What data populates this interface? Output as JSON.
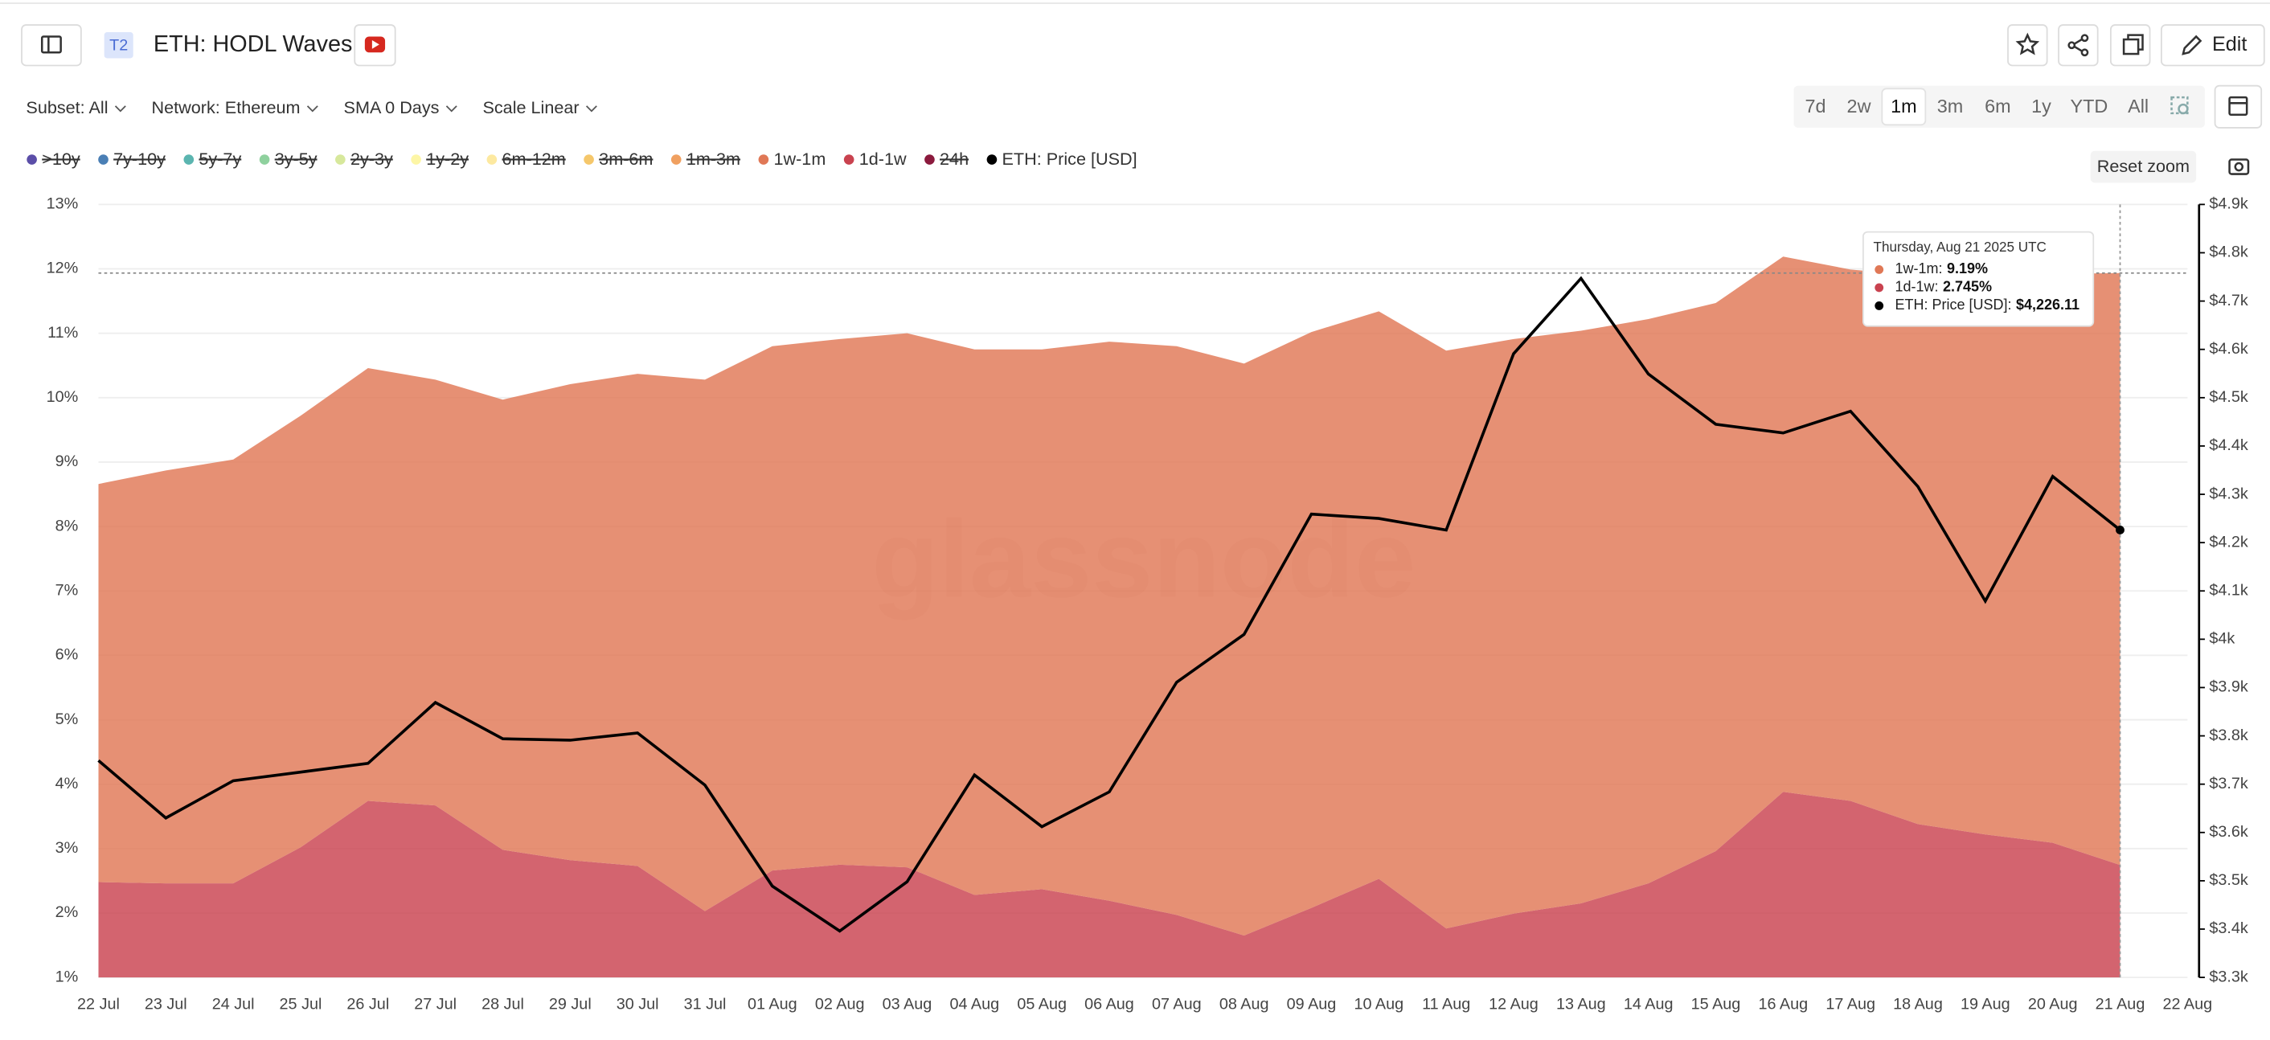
{
  "header": {
    "badge": "T2",
    "title": "ETH: HODL Waves",
    "edit": "Edit"
  },
  "controls": {
    "dropdowns": [
      "Subset: All",
      "Network: Ethereum",
      "SMA 0 Days",
      "Scale Linear"
    ],
    "ranges": [
      "7d",
      "2w",
      "1m",
      "3m",
      "6m",
      "1y",
      "YTD",
      "All"
    ],
    "active_range": "1m",
    "reset_zoom": "Reset zoom"
  },
  "chart_data": {
    "type": "area",
    "watermark": "glassnode",
    "categories": [
      "22 Jul",
      "23 Jul",
      "24 Jul",
      "25 Jul",
      "26 Jul",
      "27 Jul",
      "28 Jul",
      "29 Jul",
      "30 Jul",
      "31 Jul",
      "01 Aug",
      "02 Aug",
      "03 Aug",
      "04 Aug",
      "05 Aug",
      "06 Aug",
      "07 Aug",
      "08 Aug",
      "09 Aug",
      "10 Aug",
      "11 Aug",
      "12 Aug",
      "13 Aug",
      "14 Aug",
      "15 Aug",
      "16 Aug",
      "17 Aug",
      "18 Aug",
      "19 Aug",
      "20 Aug",
      "21 Aug",
      "22 Aug"
    ],
    "series": [
      {
        "name": ">10y",
        "color": "#5b4ea8",
        "hidden": true
      },
      {
        "name": "7y-10y",
        "color": "#4a7fb5",
        "hidden": true
      },
      {
        "name": "5y-7y",
        "color": "#5bb5b0",
        "hidden": true
      },
      {
        "name": "3y-5y",
        "color": "#8fd19e",
        "hidden": true
      },
      {
        "name": "2y-3y",
        "color": "#d7e89c",
        "hidden": true
      },
      {
        "name": "1y-2y",
        "color": "#fdf6a6",
        "hidden": true
      },
      {
        "name": "6m-12m",
        "color": "#fde9a0",
        "hidden": true
      },
      {
        "name": "3m-6m",
        "color": "#f5c76b",
        "hidden": true
      },
      {
        "name": "1m-3m",
        "color": "#f0a060",
        "hidden": true
      },
      {
        "name": "1w-1m",
        "color": "#e07856",
        "values": [
          6.18,
          6.41,
          6.58,
          6.7,
          6.72,
          6.61,
          6.99,
          7.39,
          7.64,
          8.25,
          8.14,
          8.16,
          8.29,
          8.47,
          8.38,
          8.68,
          8.83,
          8.88,
          8.94,
          8.81,
          8.97,
          8.92,
          8.89,
          8.76,
          8.51,
          8.31,
          8.25,
          8.52,
          8.7,
          8.83,
          9.19,
          null
        ]
      },
      {
        "name": "1d-1w",
        "color": "#c9424f",
        "values": [
          2.48,
          2.46,
          2.46,
          3.02,
          3.74,
          3.67,
          2.98,
          2.82,
          2.73,
          2.03,
          2.66,
          2.75,
          2.71,
          2.28,
          2.37,
          2.19,
          1.97,
          1.65,
          2.08,
          2.53,
          1.76,
          1.99,
          2.15,
          2.46,
          2.96,
          3.88,
          3.74,
          3.38,
          3.22,
          3.09,
          2.745,
          null
        ]
      },
      {
        "name": "24h",
        "color": "#8b1a3d",
        "hidden": true
      },
      {
        "name": "ETH: Price [USD]",
        "color": "#000000",
        "axis": "y2",
        "values": [
          3749,
          3630,
          3707,
          3725,
          3743,
          3869,
          3794,
          3791,
          3806,
          3698,
          3489,
          3396,
          3498,
          3719,
          3612,
          3684,
          3911,
          4010,
          4259,
          4250,
          4226,
          4591,
          4747,
          4549,
          4445,
          4427,
          4472,
          4316,
          4079,
          4337,
          4226.11,
          null
        ]
      }
    ],
    "ylim": [
      1,
      13
    ],
    "yticks": [
      {
        "value": 1,
        "label": "1%"
      },
      {
        "value": 2,
        "label": "2%"
      },
      {
        "value": 3,
        "label": "3%"
      },
      {
        "value": 4,
        "label": "4%"
      },
      {
        "value": 5,
        "label": "5%"
      },
      {
        "value": 6,
        "label": "6%"
      },
      {
        "value": 7,
        "label": "7%"
      },
      {
        "value": 8,
        "label": "8%"
      },
      {
        "value": 9,
        "label": "9%"
      },
      {
        "value": 10,
        "label": "10%"
      },
      {
        "value": 11,
        "label": "11%"
      },
      {
        "value": 12,
        "label": "12%"
      },
      {
        "value": 13,
        "label": "13%"
      }
    ],
    "y2lim": [
      3300,
      4900
    ],
    "y2ticks": [
      {
        "value": 3300,
        "label": "$3.3k"
      },
      {
        "value": 3400,
        "label": "$3.4k"
      },
      {
        "value": 3500,
        "label": "$3.5k"
      },
      {
        "value": 3600,
        "label": "$3.6k"
      },
      {
        "value": 3700,
        "label": "$3.7k"
      },
      {
        "value": 3800,
        "label": "$3.8k"
      },
      {
        "value": 3900,
        "label": "$3.9k"
      },
      {
        "value": 4000,
        "label": "$4k"
      },
      {
        "value": 4100,
        "label": "$4.1k"
      },
      {
        "value": 4200,
        "label": "$4.2k"
      },
      {
        "value": 4300,
        "label": "$4.3k"
      },
      {
        "value": 4400,
        "label": "$4.4k"
      },
      {
        "value": 4500,
        "label": "$4.5k"
      },
      {
        "value": 4600,
        "label": "$4.6k"
      },
      {
        "value": 4700,
        "label": "$4.7k"
      },
      {
        "value": 4800,
        "label": "$4.8k"
      },
      {
        "value": 4900,
        "label": "$4.9k"
      }
    ],
    "grid": true,
    "tooltip": {
      "title": "Thursday, Aug 21 2025 UTC",
      "items": [
        {
          "label": "1w-1m:",
          "value": "9.19%",
          "color": "#e07856"
        },
        {
          "label": "1d-1w:",
          "value": "2.745%",
          "color": "#c9424f"
        },
        {
          "label": "ETH: Price [USD]:",
          "value": "$4,226.11",
          "color": "#000000"
        }
      ]
    }
  }
}
